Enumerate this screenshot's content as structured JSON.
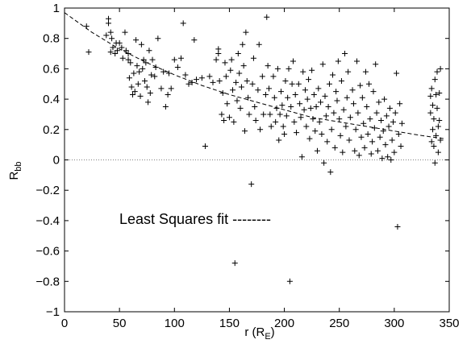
{
  "chart_data": {
    "type": "scatter",
    "title": "",
    "xlabel": "r (R",
    "xlabel_sub": "E",
    "xlabel_close": ")",
    "ylabel": "R",
    "ylabel_sub": "bb",
    "xlim": [
      0,
      350
    ],
    "ylim": [
      -1,
      1
    ],
    "xticks": [
      0,
      50,
      100,
      150,
      200,
      250,
      300,
      350
    ],
    "yticks": [
      -1,
      -0.8,
      -0.6,
      -0.4,
      -0.2,
      0,
      0.2,
      0.4,
      0.6,
      0.8,
      1
    ],
    "xtick_labels": [
      "0",
      "50",
      "100",
      "150",
      "200",
      "250",
      "300",
      "350"
    ],
    "ytick_labels": [
      "−1",
      "−0.8",
      "−0.6",
      "−0.4",
      "−0.2",
      "0",
      "0.2",
      "0.4",
      "0.6",
      "0.8",
      "1"
    ],
    "grid": false,
    "zero_line": "dotted",
    "marker": "+",
    "annotation": "Least Squares fit --------",
    "fit": {
      "style": "dashed",
      "x": [
        0,
        25,
        50,
        75,
        100,
        125,
        150,
        175,
        200,
        225,
        250,
        275,
        300,
        325,
        345
      ],
      "y": [
        0.97,
        0.84,
        0.73,
        0.64,
        0.56,
        0.49,
        0.43,
        0.38,
        0.33,
        0.28,
        0.25,
        0.22,
        0.19,
        0.16,
        0.14
      ]
    },
    "series": [
      {
        "points": [
          [
            20,
            0.88
          ],
          [
            22,
            0.71
          ],
          [
            38,
            0.82
          ],
          [
            40,
            0.9
          ],
          [
            40,
            0.93
          ],
          [
            42,
            0.84
          ],
          [
            43,
            0.8
          ],
          [
            42,
            0.71
          ],
          [
            44,
            0.74
          ],
          [
            46,
            0.7
          ],
          [
            47,
            0.77
          ],
          [
            48,
            0.72
          ],
          [
            50,
            0.77
          ],
          [
            52,
            0.74
          ],
          [
            53,
            0.67
          ],
          [
            55,
            0.84
          ],
          [
            56,
            0.72
          ],
          [
            58,
            0.7
          ],
          [
            58,
            0.66
          ],
          [
            60,
            0.64
          ],
          [
            59,
            0.54
          ],
          [
            61,
            0.48
          ],
          [
            62,
            0.43
          ],
          [
            63,
            0.57
          ],
          [
            64,
            0.45
          ],
          [
            65,
            0.79
          ],
          [
            66,
            0.62
          ],
          [
            67,
            0.5
          ],
          [
            68,
            0.58
          ],
          [
            69,
            0.42
          ],
          [
            70,
            0.76
          ],
          [
            71,
            0.6
          ],
          [
            72,
            0.66
          ],
          [
            73,
            0.52
          ],
          [
            74,
            0.64
          ],
          [
            75,
            0.48
          ],
          [
            76,
            0.38
          ],
          [
            77,
            0.72
          ],
          [
            78,
            0.44
          ],
          [
            79,
            0.56
          ],
          [
            80,
            0.66
          ],
          [
            82,
            0.55
          ],
          [
            83,
            0.61
          ],
          [
            85,
            0.8
          ],
          [
            88,
            0.47
          ],
          [
            90,
            0.58
          ],
          [
            92,
            0.35
          ],
          [
            94,
            0.43
          ],
          [
            95,
            0.57
          ],
          [
            97,
            0.47
          ],
          [
            100,
            0.66
          ],
          [
            103,
            0.61
          ],
          [
            106,
            0.67
          ],
          [
            108,
            0.9
          ],
          [
            110,
            0.56
          ],
          [
            113,
            0.5
          ],
          [
            116,
            0.51
          ],
          [
            118,
            0.79
          ],
          [
            120,
            0.53
          ],
          [
            125,
            0.54
          ],
          [
            128,
            0.09
          ],
          [
            132,
            0.55
          ],
          [
            135,
            0.51
          ],
          [
            138,
            0.66
          ],
          [
            140,
            0.73
          ],
          [
            140,
            0.7
          ],
          [
            141,
            0.52
          ],
          [
            143,
            0.3
          ],
          [
            144,
            0.44
          ],
          [
            145,
            0.26
          ],
          [
            146,
            0.64
          ],
          [
            147,
            0.55
          ],
          [
            148,
            0.37
          ],
          [
            150,
            0.28
          ],
          [
            151,
            0.59
          ],
          [
            152,
            0.66
          ],
          [
            153,
            0.46
          ],
          [
            154,
            0.25
          ],
          [
            155,
            -0.68
          ],
          [
            156,
            0.51
          ],
          [
            157,
            0.39
          ],
          [
            158,
            0.7
          ],
          [
            159,
            0.57
          ],
          [
            160,
            0.34
          ],
          [
            161,
            0.48
          ],
          [
            162,
            0.76
          ],
          [
            163,
            0.62
          ],
          [
            164,
            0.19
          ],
          [
            165,
            0.84
          ],
          [
            166,
            0.52
          ],
          [
            167,
            0.41
          ],
          [
            168,
            0.3
          ],
          [
            170,
            -0.16
          ],
          [
            171,
            0.5
          ],
          [
            172,
            0.67
          ],
          [
            173,
            0.35
          ],
          [
            174,
            0.26
          ],
          [
            176,
            0.46
          ],
          [
            177,
            0.76
          ],
          [
            178,
            0.2
          ],
          [
            180,
            0.55
          ],
          [
            181,
            0.3
          ],
          [
            183,
            0.43
          ],
          [
            184,
            0.94
          ],
          [
            185,
            0.62
          ],
          [
            186,
            0.47
          ],
          [
            187,
            0.3
          ],
          [
            188,
            0.22
          ],
          [
            190,
            0.55
          ],
          [
            191,
            0.41
          ],
          [
            192,
            0.25
          ],
          [
            193,
            0.34
          ],
          [
            194,
            0.6
          ],
          [
            195,
            0.13
          ],
          [
            196,
            0.3
          ],
          [
            197,
            0.45
          ],
          [
            198,
            0.36
          ],
          [
            199,
            0.22
          ],
          [
            200,
            0.17
          ],
          [
            201,
            0.52
          ],
          [
            202,
            0.29
          ],
          [
            203,
            0.41
          ],
          [
            204,
            0.6
          ],
          [
            205,
            -0.8
          ],
          [
            206,
            0.35
          ],
          [
            207,
            0.5
          ],
          [
            208,
            0.65
          ],
          [
            209,
            0.25
          ],
          [
            210,
            0.43
          ],
          [
            211,
            0.18
          ],
          [
            213,
            0.5
          ],
          [
            214,
            0.37
          ],
          [
            215,
            0.28
          ],
          [
            216,
            0.02
          ],
          [
            217,
            0.58
          ],
          [
            218,
            0.33
          ],
          [
            219,
            0.46
          ],
          [
            220,
            0.22
          ],
          [
            221,
            0.4
          ],
          [
            222,
            0.53
          ],
          [
            223,
            0.14
          ],
          [
            224,
            0.34
          ],
          [
            225,
            0.59
          ],
          [
            226,
            0.27
          ],
          [
            227,
            0.43
          ],
          [
            228,
            0.19
          ],
          [
            229,
            0.35
          ],
          [
            230,
            0.06
          ],
          [
            231,
            0.47
          ],
          [
            232,
            0.25
          ],
          [
            233,
            0.38
          ],
          [
            234,
            0.17
          ],
          [
            235,
            0.63
          ],
          [
            236,
            -0.02
          ],
          [
            237,
            0.42
          ],
          [
            238,
            0.29
          ],
          [
            239,
            0.12
          ],
          [
            240,
            0.35
          ],
          [
            241,
            0.5
          ],
          [
            242,
            -0.08
          ],
          [
            243,
            0.2
          ],
          [
            244,
            0.56
          ],
          [
            245,
            0.31
          ],
          [
            246,
            0.08
          ],
          [
            247,
            0.45
          ],
          [
            248,
            0.39
          ],
          [
            249,
            0.65
          ],
          [
            250,
            0.27
          ],
          [
            251,
            0.16
          ],
          [
            252,
            0.52
          ],
          [
            253,
            0.05
          ],
          [
            254,
            0.33
          ],
          [
            255,
            0.7
          ],
          [
            256,
            0.22
          ],
          [
            257,
            0.41
          ],
          [
            258,
            0.58
          ],
          [
            259,
            0.13
          ],
          [
            260,
            0.28
          ],
          [
            262,
            0.46
          ],
          [
            263,
            0.37
          ],
          [
            264,
            0.06
          ],
          [
            265,
            0.2
          ],
          [
            266,
            0.65
          ],
          [
            267,
            0.31
          ],
          [
            268,
            0.03
          ],
          [
            269,
            0.49
          ],
          [
            270,
            0.15
          ],
          [
            271,
            0.41
          ],
          [
            272,
            0.24
          ],
          [
            273,
            0.08
          ],
          [
            274,
            0.58
          ],
          [
            275,
            0.35
          ],
          [
            276,
            0.17
          ],
          [
            277,
            0.5
          ],
          [
            278,
            0.27
          ],
          [
            279,
            0.04
          ],
          [
            280,
            0.12
          ],
          [
            281,
            0.45
          ],
          [
            282,
            0.21
          ],
          [
            283,
            0.63
          ],
          [
            284,
            0.31
          ],
          [
            285,
            0.06
          ],
          [
            286,
            0.38
          ],
          [
            287,
            0.15
          ],
          [
            288,
            0.26
          ],
          [
            289,
            0.01
          ],
          [
            290,
            0.19
          ],
          [
            291,
            0.4
          ],
          [
            292,
            0.1
          ],
          [
            293,
            0.29
          ],
          [
            294,
            0.02
          ],
          [
            295,
            0.22
          ],
          [
            296,
            0.34
          ],
          [
            297,
            0.0
          ],
          [
            298,
            0.13
          ],
          [
            299,
            0.25
          ],
          [
            300,
            0.05
          ],
          [
            301,
            0.31
          ],
          [
            302,
            0.57
          ],
          [
            303,
            -0.44
          ],
          [
            304,
            0.17
          ],
          [
            305,
            0.37
          ],
          [
            306,
            0.09
          ],
          [
            307,
            0.24
          ],
          [
            333,
            0.42
          ],
          [
            333,
            0.31
          ],
          [
            334,
            0.47
          ],
          [
            334,
            0.12
          ],
          [
            335,
            0.36
          ],
          [
            335,
            0.2
          ],
          [
            336,
            0.27
          ],
          [
            336,
            0.09
          ],
          [
            337,
            0.53
          ],
          [
            337,
            -0.02
          ],
          [
            338,
            0.43
          ],
          [
            338,
            0.16
          ],
          [
            339,
            0.58
          ],
          [
            339,
            0.34
          ],
          [
            340,
            0.22
          ],
          [
            340,
            0.05
          ],
          [
            341,
            0.44
          ],
          [
            341,
            0.26
          ],
          [
            342,
            0.13
          ],
          [
            342,
            0.6
          ]
        ]
      }
    ]
  }
}
